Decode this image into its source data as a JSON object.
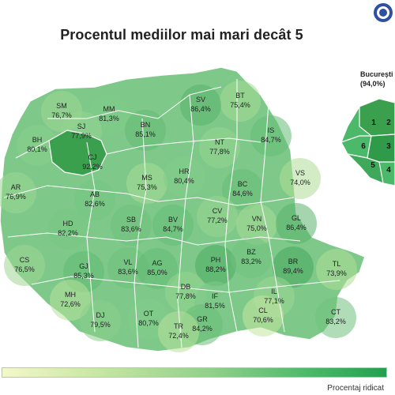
{
  "title": "Procentul mediilor mai mari decât 5",
  "inset": {
    "name": "București",
    "value": "(94,0%)",
    "sectors": [
      "1",
      "2",
      "3",
      "4",
      "5",
      "6"
    ]
  },
  "legend": {
    "high_label": "Procentaj ridicat",
    "low_color": "#f4f8c9",
    "high_color": "#22a04f"
  },
  "counties": [
    {
      "code": "SM",
      "value": "76,7%"
    },
    {
      "code": "MM",
      "value": "81,3%"
    },
    {
      "code": "BT",
      "value": "75,4%"
    },
    {
      "code": "SV",
      "value": "86,4%"
    },
    {
      "code": "SJ",
      "value": "77,9%"
    },
    {
      "code": "BN",
      "value": "85,1%"
    },
    {
      "code": "IS",
      "value": "84,7%"
    },
    {
      "code": "BH",
      "value": "80,1%"
    },
    {
      "code": "CJ",
      "value": "92,2%"
    },
    {
      "code": "NT",
      "value": "77,8%"
    },
    {
      "code": "MS",
      "value": "75,3%"
    },
    {
      "code": "HR",
      "value": "80,4%"
    },
    {
      "code": "VS",
      "value": "74,0%"
    },
    {
      "code": "AR",
      "value": "76,9%"
    },
    {
      "code": "AB",
      "value": "82,6%"
    },
    {
      "code": "BC",
      "value": "84,6%"
    },
    {
      "code": "HD",
      "value": "82,2%"
    },
    {
      "code": "SB",
      "value": "83,6%"
    },
    {
      "code": "BV",
      "value": "84,7%"
    },
    {
      "code": "CV",
      "value": "77,2%"
    },
    {
      "code": "VN",
      "value": "75,0%"
    },
    {
      "code": "GL",
      "value": "86,4%"
    },
    {
      "code": "CS",
      "value": "76,5%"
    },
    {
      "code": "GJ",
      "value": "85,3%"
    },
    {
      "code": "VL",
      "value": "83,6%"
    },
    {
      "code": "AG",
      "value": "85,0%"
    },
    {
      "code": "PH",
      "value": "88,2%"
    },
    {
      "code": "BZ",
      "value": "83,2%"
    },
    {
      "code": "BR",
      "value": "89,4%"
    },
    {
      "code": "TL",
      "value": "73,9%"
    },
    {
      "code": "DB",
      "value": "77,8%"
    },
    {
      "code": "MH",
      "value": "72,6%"
    },
    {
      "code": "IL",
      "value": "77,1%"
    },
    {
      "code": "IF",
      "value": "81,5%"
    },
    {
      "code": "DJ",
      "value": "79,5%"
    },
    {
      "code": "OT",
      "value": "80,7%"
    },
    {
      "code": "CL",
      "value": "70,6%"
    },
    {
      "code": "GR",
      "value": "84,2%"
    },
    {
      "code": "TR",
      "value": "72,4%"
    },
    {
      "code": "CT",
      "value": "83,2%"
    }
  ]
}
